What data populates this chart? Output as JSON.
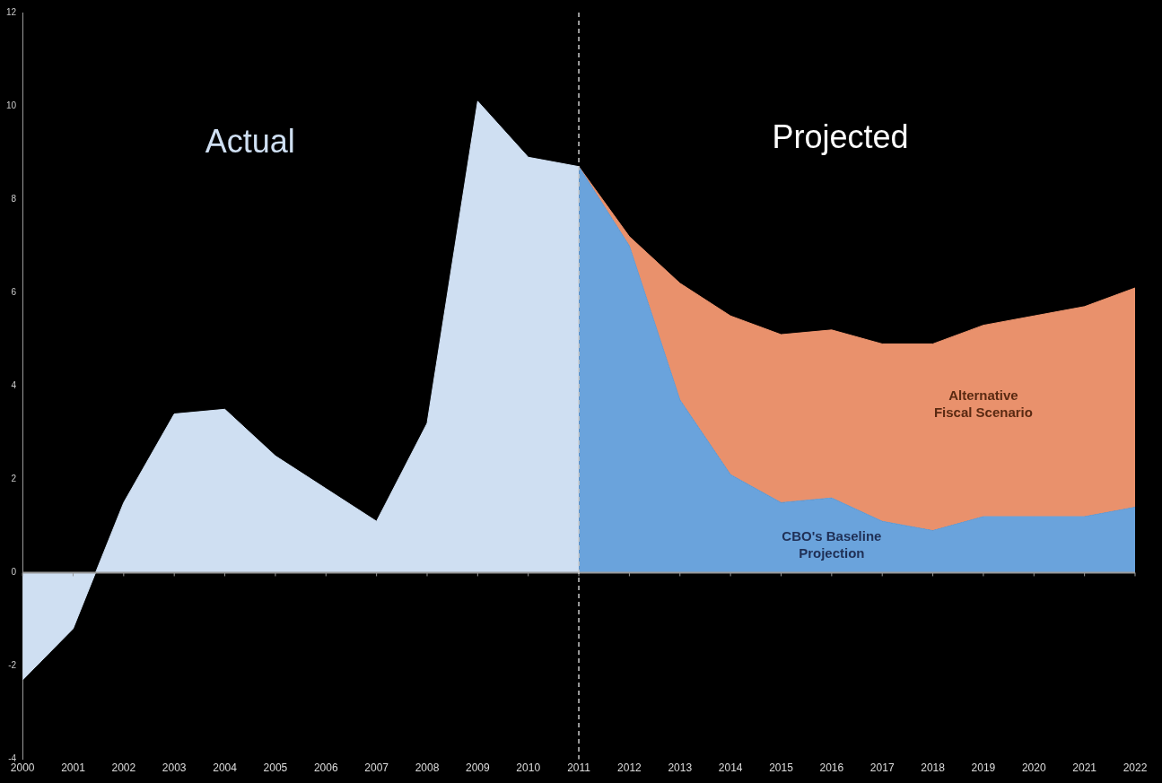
{
  "chart_data": {
    "type": "area",
    "series": [
      {
        "name": "Actual",
        "color": "#cfdff2",
        "x": [
          2000,
          2001,
          2002,
          2003,
          2004,
          2005,
          2006,
          2007,
          2008,
          2009,
          2010,
          2011
        ],
        "values": [
          -2.3,
          -1.2,
          1.5,
          3.4,
          3.5,
          2.5,
          1.8,
          1.1,
          3.2,
          10.1,
          8.9,
          8.7
        ]
      },
      {
        "name": "CBO's Baseline Projection",
        "color": "#6aa3dc",
        "x": [
          2011,
          2012,
          2013,
          2014,
          2015,
          2016,
          2017,
          2018,
          2019,
          2020,
          2021,
          2022
        ],
        "values": [
          8.7,
          7.0,
          3.7,
          2.1,
          1.5,
          1.6,
          1.1,
          0.9,
          1.2,
          1.2,
          1.2,
          1.4
        ]
      },
      {
        "name": "Alternative Fiscal Scenario",
        "color": "#e9916c",
        "x": [
          2011,
          2012,
          2013,
          2014,
          2015,
          2016,
          2017,
          2018,
          2019,
          2020,
          2021,
          2022
        ],
        "values": [
          8.7,
          7.2,
          6.2,
          5.5,
          5.1,
          5.2,
          4.9,
          4.9,
          5.3,
          5.5,
          5.7,
          6.1
        ]
      }
    ],
    "xlim": [
      2000,
      2022
    ],
    "xticks": [
      2000,
      2001,
      2002,
      2003,
      2004,
      2005,
      2006,
      2007,
      2008,
      2009,
      2010,
      2011,
      2012,
      2013,
      2014,
      2015,
      2016,
      2017,
      2018,
      2019,
      2020,
      2021,
      2022
    ],
    "ylim": [
      -4,
      12
    ],
    "yticks": [
      -4,
      -2,
      0,
      2,
      4,
      6,
      8,
      10,
      12
    ],
    "grid": false,
    "legend": false,
    "ref_lines": [
      {
        "axis": "x",
        "value": 2011,
        "color": "#cccccc",
        "line_style": "dashed"
      }
    ],
    "annotations": [
      "Projected"
    ]
  }
}
